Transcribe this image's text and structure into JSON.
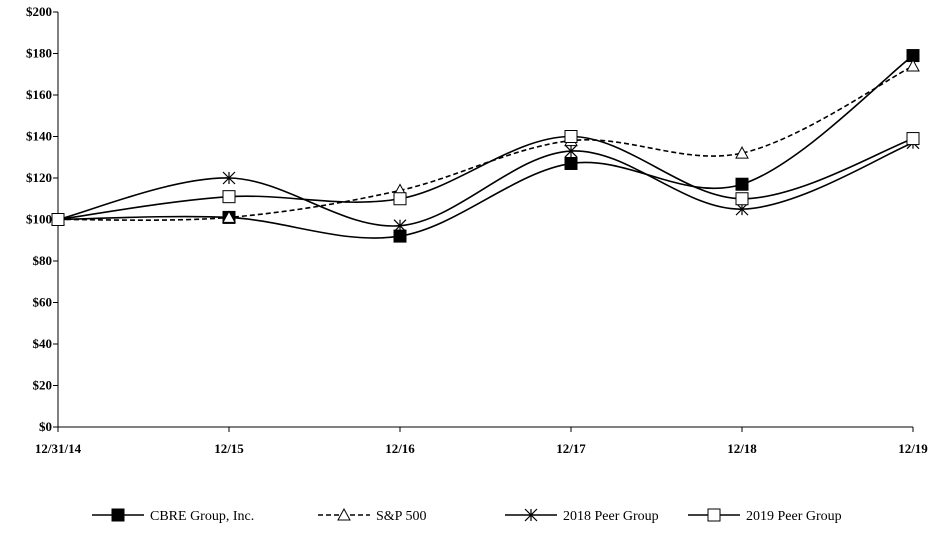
{
  "chart_data": {
    "type": "line",
    "title": "",
    "xlabel": "",
    "ylabel": "",
    "categories": [
      "12/31/14",
      "12/15",
      "12/16",
      "12/17",
      "12/18",
      "12/19"
    ],
    "y_ticks": [
      "$0",
      "$20",
      "$40",
      "$60",
      "$80",
      "$100",
      "$120",
      "$140",
      "$160",
      "$180",
      "$200"
    ],
    "ylim": [
      0,
      200
    ],
    "grid": false,
    "legend_position": "bottom",
    "series": [
      {
        "name": "CBRE Group, Inc.",
        "marker": "filled-square",
        "dash": "solid",
        "color": "#000000",
        "values": [
          100,
          101,
          92,
          127,
          117,
          179
        ]
      },
      {
        "name": "S&P 500",
        "marker": "open-triangle",
        "dash": "dashed",
        "color": "#000000",
        "values": [
          100,
          101,
          114,
          138,
          132,
          174
        ]
      },
      {
        "name": "2018 Peer Group",
        "marker": "asterisk",
        "dash": "solid",
        "color": "#000000",
        "values": [
          100,
          120,
          97,
          133,
          105,
          137
        ]
      },
      {
        "name": "2019 Peer Group",
        "marker": "open-square",
        "dash": "solid",
        "color": "#000000",
        "values": [
          100,
          111,
          110,
          140,
          110,
          139
        ]
      }
    ]
  }
}
